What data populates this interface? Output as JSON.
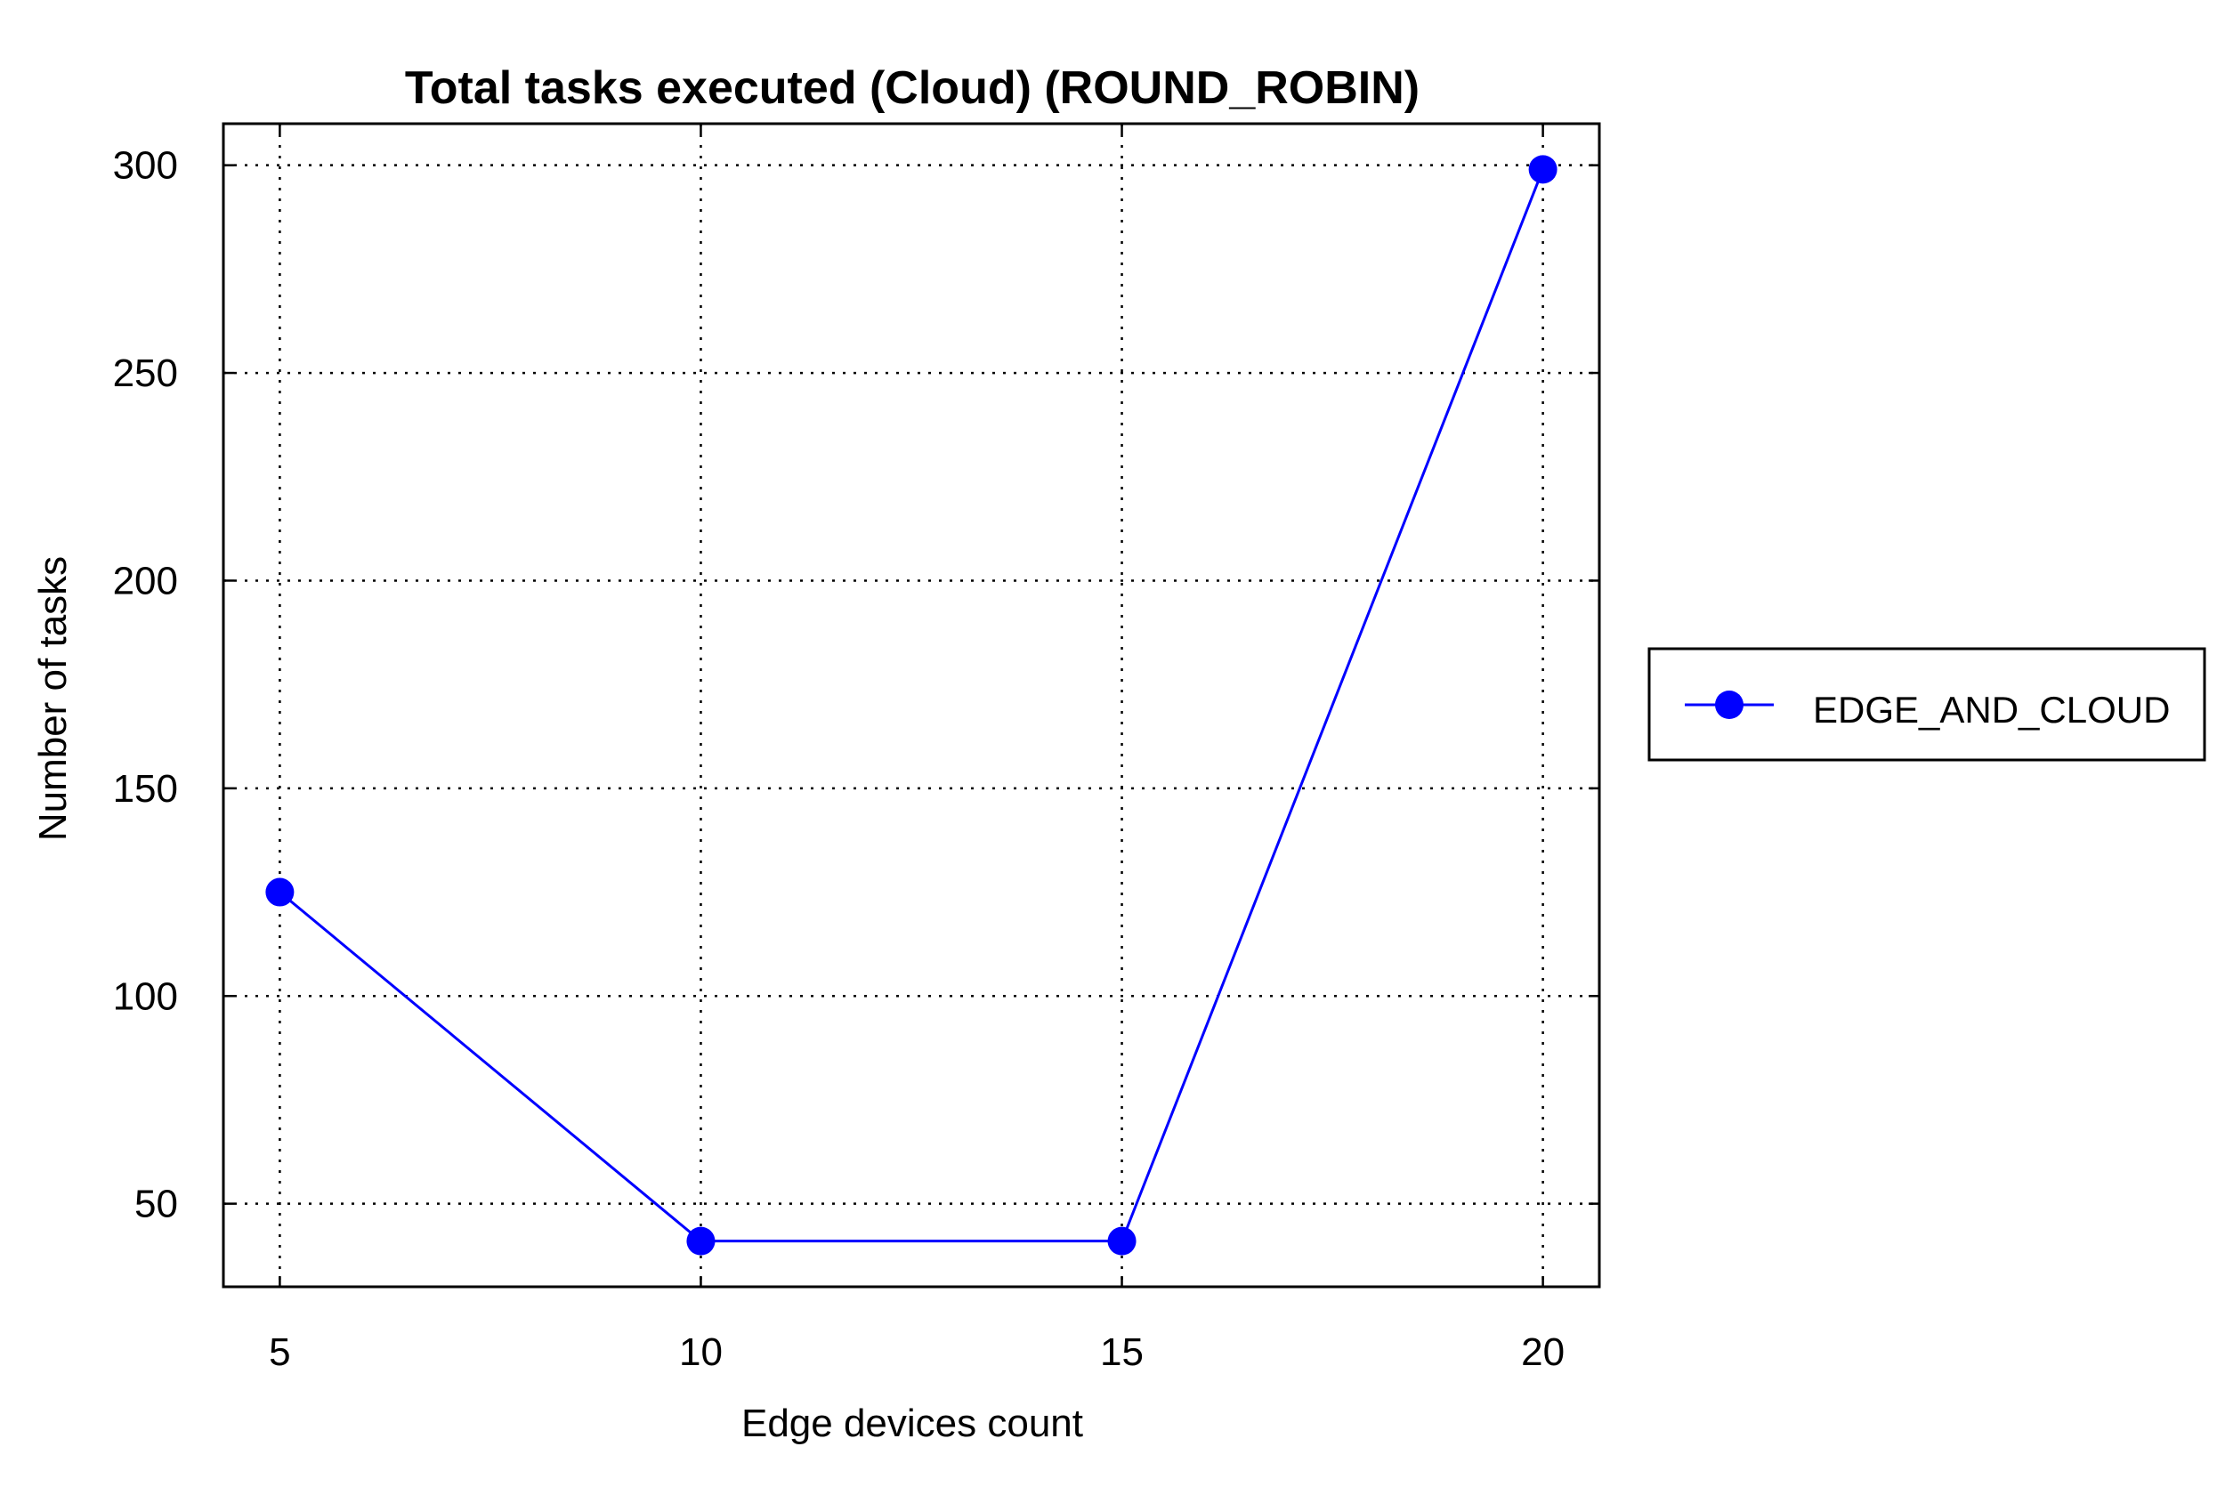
{
  "chart_data": {
    "type": "line",
    "title": "Total tasks executed (Cloud) (ROUND_ROBIN)",
    "xlabel": "Edge devices count",
    "ylabel": "Number of tasks",
    "x": [
      5,
      10,
      15,
      20
    ],
    "xticks": [
      5,
      10,
      15,
      20
    ],
    "yticks": [
      50,
      100,
      150,
      200,
      250,
      300
    ],
    "xlim": [
      4.33,
      20.67
    ],
    "ylim": [
      30,
      310
    ],
    "grid": true,
    "legend_position": "right",
    "series": [
      {
        "name": "EDGE_AND_CLOUD",
        "values": [
          125,
          41,
          41,
          299
        ],
        "color": "#0000ff",
        "marker": "circle"
      }
    ]
  }
}
